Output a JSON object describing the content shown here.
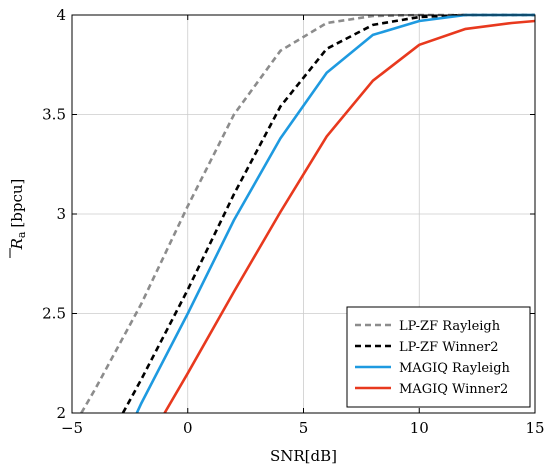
{
  "chart_data": {
    "type": "line",
    "xlabel": "SNR[dB]",
    "ylabel": "R̄a [bpcu]",
    "ylabel_main": "R",
    "ylabel_sub": "a",
    "ylabel_unit": "[bpcu]",
    "xlim": [
      -5,
      15
    ],
    "ylim": [
      2,
      4
    ],
    "x_ticks": [
      -5,
      0,
      5,
      10,
      15
    ],
    "x_tick_labels": [
      "−5",
      "0",
      "5",
      "10",
      "15"
    ],
    "y_ticks": [
      2,
      2.5,
      3,
      3.5,
      4
    ],
    "y_tick_labels": [
      "2",
      "2.5",
      "3",
      "3.5",
      "4"
    ],
    "grid": true,
    "legend_position": "bottom-right",
    "series": [
      {
        "name": "LP-ZF Rayleigh",
        "color": "#8c8c8c",
        "style": "dashed",
        "x": [
          -4.6,
          -4,
          -2,
          0,
          2,
          4,
          6,
          8,
          10,
          12,
          14,
          15
        ],
        "y": [
          2.0,
          2.12,
          2.55,
          3.04,
          3.5,
          3.82,
          3.96,
          3.995,
          4.0,
          4.0,
          4.0,
          4.0
        ]
      },
      {
        "name": "LP-ZF Winner2",
        "color": "#000000",
        "style": "dashed",
        "x": [
          -2.8,
          -2,
          0,
          2,
          4,
          6,
          8,
          10,
          12,
          14,
          15
        ],
        "y": [
          2.0,
          2.17,
          2.62,
          3.1,
          3.54,
          3.83,
          3.95,
          3.99,
          4.0,
          4.0,
          4.0
        ]
      },
      {
        "name": "MAGIQ Rayleigh",
        "color": "#1e9ae0",
        "style": "solid",
        "x": [
          -2.2,
          -2,
          0,
          2,
          4,
          6,
          8,
          10,
          12,
          14,
          15
        ],
        "y": [
          2.0,
          2.05,
          2.5,
          2.97,
          3.38,
          3.71,
          3.9,
          3.97,
          4.0,
          4.0,
          4.0
        ]
      },
      {
        "name": "MAGIQ Winner2",
        "color": "#e8391e",
        "style": "solid",
        "x": [
          -1.0,
          0,
          2,
          4,
          6,
          8,
          10,
          12,
          14,
          15
        ],
        "y": [
          2.0,
          2.2,
          2.61,
          3.01,
          3.39,
          3.67,
          3.85,
          3.93,
          3.96,
          3.97
        ]
      }
    ]
  }
}
